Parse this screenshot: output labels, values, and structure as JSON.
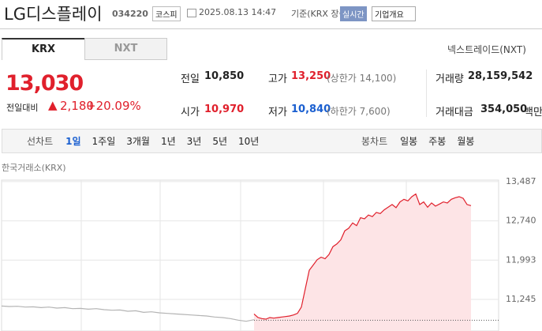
{
  "header": {
    "name": "LG디스플레이",
    "code": "034220",
    "market": "코스피",
    "datetime": "2025.08.13 14:47",
    "basis": "기준(KRX 장중)",
    "badge": "실시간",
    "menu": "기업개요"
  },
  "tabs": [
    "KRX",
    "NXT"
  ],
  "nxt_link": "넥스트레이드(NXT)",
  "price": {
    "current": "13,030",
    "change_label": "전일대비",
    "change": "2,180",
    "change_pct": "+20.09%"
  },
  "stats": [
    {
      "label": "전일",
      "value": "10,850"
    },
    {
      "label": "고가",
      "value": "13,250",
      "note": "(상한가 14,100)"
    },
    {
      "label": "거래량",
      "value": "28,159,542"
    },
    {
      "label": "시가",
      "value": "10,970"
    },
    {
      "label": "저가",
      "value": "10,840",
      "note": "(하한가 7,600)"
    },
    {
      "label": "거래대금",
      "value": "354,050",
      "unit": "백만"
    }
  ],
  "toolbar": {
    "line_label": "선차트",
    "periods": [
      "1일",
      "1주일",
      "3개월",
      "1년",
      "3년",
      "5년",
      "10년"
    ],
    "candle_label": "봉차트",
    "candles": [
      "일봉",
      "주봉",
      "월봉"
    ]
  },
  "chart_data": {
    "type": "line",
    "source": "한국거래소(KRX)",
    "grid": true,
    "xlim": [
      0,
      126
    ],
    "ylim": [
      10780,
      13560
    ],
    "yticks": [
      {
        "value": 11245,
        "label": "11,245"
      },
      {
        "value": 11993,
        "label": "11,993"
      },
      {
        "value": 12740,
        "label": "12,740"
      },
      {
        "value": 13487,
        "label": "13,487"
      }
    ],
    "baseline": 10850,
    "series": [
      {
        "color": "#b4b4b4",
        "fill": false,
        "x": [
          0,
          2,
          4,
          6,
          8,
          10,
          12,
          14,
          16,
          18,
          20,
          22,
          24,
          26,
          28,
          30,
          32,
          34,
          36,
          38,
          40,
          42,
          44,
          46,
          48,
          50,
          52,
          54,
          56,
          58,
          60,
          62,
          64
        ],
        "values": [
          11120,
          11110,
          11115,
          11100,
          11105,
          11090,
          11100,
          11080,
          11090,
          11070,
          11075,
          11060,
          11070,
          11050,
          11040,
          11045,
          11020,
          11030,
          11000,
          11010,
          10990,
          10980,
          10970,
          10960,
          10950,
          10940,
          10930,
          10910,
          10900,
          10880,
          10850,
          10830,
          10860
        ]
      },
      {
        "color": "#e0202c",
        "fill": true,
        "x": [
          64,
          65,
          66,
          67,
          68,
          69,
          70,
          71,
          72,
          73,
          74,
          75,
          76,
          77,
          78,
          79,
          80,
          81,
          82,
          83,
          84,
          85,
          86,
          87,
          88,
          89,
          90,
          91,
          92,
          93,
          94,
          95,
          96,
          97,
          98,
          99,
          100,
          101,
          102,
          103,
          104,
          105,
          106,
          107,
          108,
          109,
          110,
          111,
          112,
          113,
          114,
          115,
          116,
          117,
          118,
          119
        ],
        "values": [
          10970,
          10900,
          10880,
          10870,
          10900,
          10890,
          10900,
          10910,
          10920,
          10930,
          10950,
          10980,
          11100,
          11450,
          11800,
          11900,
          12000,
          12050,
          12020,
          12100,
          12250,
          12300,
          12380,
          12550,
          12600,
          12700,
          12650,
          12800,
          12780,
          12850,
          12820,
          12900,
          12880,
          12950,
          13000,
          13050,
          12990,
          13100,
          13150,
          13120,
          13200,
          13250,
          13050,
          13100,
          13000,
          13080,
          13020,
          13060,
          13100,
          13080,
          13150,
          13180,
          13200,
          13170,
          13050,
          13030
        ]
      }
    ]
  }
}
